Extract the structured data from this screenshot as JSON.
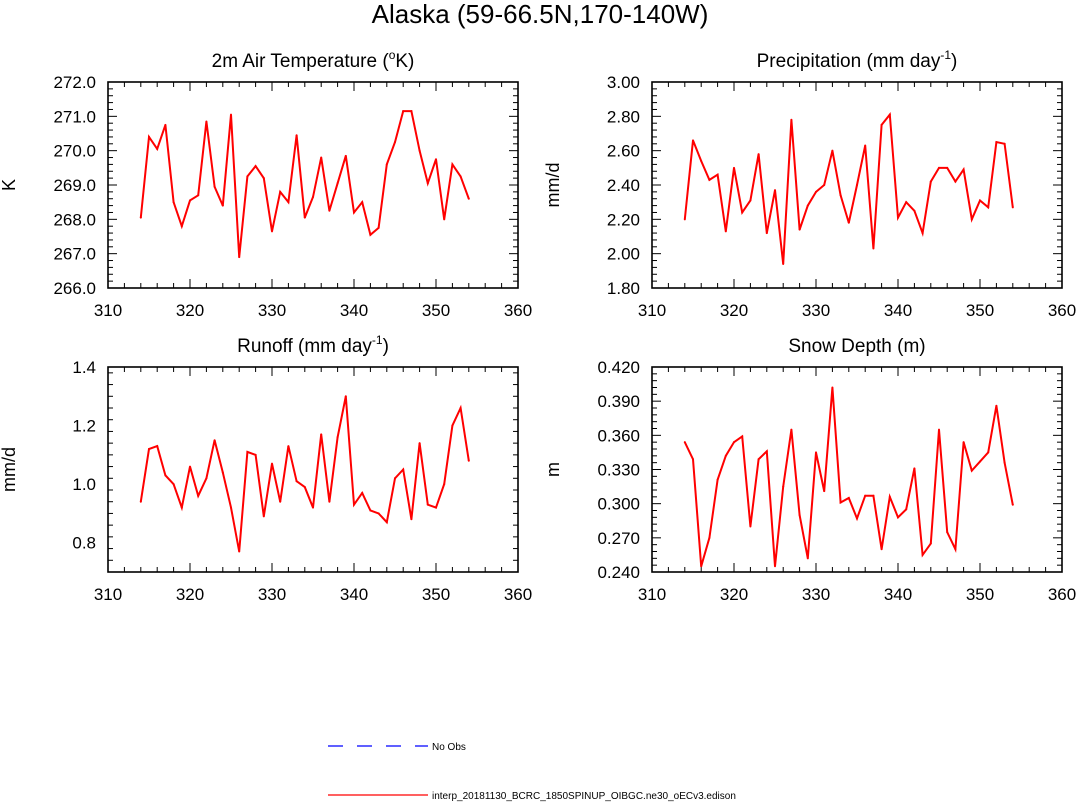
{
  "figure": {
    "title": "Alaska (59-66.5N,170-140W)",
    "line_color": "#ff0000",
    "obs_color": "#0000ff"
  },
  "chart_data": [
    {
      "type": "line",
      "title_main": "2m Air Temperature (",
      "title_sup": "o",
      "title_tail": "K)",
      "ylabel": "K",
      "xlim": [
        310,
        360
      ],
      "ylim": [
        266.0,
        272.0
      ],
      "xticks": [
        "310",
        "320",
        "330",
        "340",
        "350",
        "360"
      ],
      "yticks": [
        "266.0",
        "267.0",
        "268.0",
        "269.0",
        "270.0",
        "271.0",
        "272.0"
      ],
      "x": [
        314,
        315,
        316,
        317,
        318,
        319,
        320,
        321,
        322,
        323,
        324,
        325,
        326,
        327,
        328,
        329,
        330,
        331,
        332,
        333,
        334,
        335,
        336,
        337,
        338,
        339,
        340,
        341,
        342,
        343,
        344,
        345,
        346,
        347,
        348,
        349,
        350,
        351,
        352,
        353,
        354
      ],
      "series": [
        {
          "name": "interp_20181130_BCRC_1850SPINUP_OIBGC.ne30_oECv3.edison",
          "values": [
            268.05,
            270.4,
            270.05,
            270.75,
            268.5,
            267.8,
            268.55,
            268.7,
            270.85,
            268.95,
            268.4,
            271.05,
            266.9,
            269.25,
            269.55,
            269.2,
            267.65,
            268.8,
            268.5,
            270.45,
            268.05,
            268.65,
            269.8,
            268.25,
            269.05,
            269.85,
            268.2,
            268.5,
            267.55,
            267.75,
            269.6,
            270.25,
            271.15,
            271.15,
            270.0,
            269.05,
            269.75,
            268.0,
            269.6,
            269.25,
            268.6
          ]
        }
      ]
    },
    {
      "type": "line",
      "title_main": "Precipitation (mm day",
      "title_sup": "-1",
      "title_tail": ")",
      "ylabel": "mm/d",
      "xlim": [
        310,
        360
      ],
      "ylim": [
        1.8,
        3.0
      ],
      "xticks": [
        "310",
        "320",
        "330",
        "340",
        "350",
        "360"
      ],
      "yticks": [
        "1.80",
        "2.00",
        "2.20",
        "2.40",
        "2.60",
        "2.80",
        "3.00"
      ],
      "x": [
        314,
        315,
        316,
        317,
        318,
        319,
        320,
        321,
        322,
        323,
        324,
        325,
        326,
        327,
        328,
        329,
        330,
        331,
        332,
        333,
        334,
        335,
        336,
        337,
        338,
        339,
        340,
        341,
        342,
        343,
        344,
        345,
        346,
        347,
        348,
        349,
        350,
        351,
        352,
        353,
        354
      ],
      "series": [
        {
          "name": "interp_20181130_BCRC_1850SPINUP_OIBGC.ne30_oECv3.edison",
          "values": [
            2.2,
            2.66,
            2.54,
            2.43,
            2.46,
            2.13,
            2.5,
            2.24,
            2.31,
            2.58,
            2.12,
            2.37,
            1.94,
            2.78,
            2.14,
            2.28,
            2.36,
            2.4,
            2.6,
            2.34,
            2.18,
            2.4,
            2.63,
            2.03,
            2.75,
            2.81,
            2.21,
            2.3,
            2.25,
            2.12,
            2.42,
            2.5,
            2.5,
            2.42,
            2.49,
            2.2,
            2.31,
            2.27,
            2.65,
            2.64,
            2.27
          ]
        }
      ]
    },
    {
      "type": "line",
      "title_main": "Runoff (mm day",
      "title_sup": "-1",
      "title_tail": ")",
      "ylabel": "mm/d",
      "xlim": [
        310,
        360
      ],
      "ylim": [
        0.7,
        1.4
      ],
      "xticks": [
        "310",
        "320",
        "330",
        "340",
        "350",
        "360"
      ],
      "yticks": [
        "0.8",
        "1.0",
        "1.2",
        "1.4"
      ],
      "ytick_values": [
        0.8,
        1.0,
        1.2,
        1.4
      ],
      "x": [
        314,
        315,
        316,
        317,
        318,
        319,
        320,
        321,
        322,
        323,
        324,
        325,
        326,
        327,
        328,
        329,
        330,
        331,
        332,
        333,
        334,
        335,
        336,
        337,
        338,
        339,
        340,
        341,
        342,
        343,
        344,
        345,
        346,
        347,
        348,
        349,
        350,
        351,
        352,
        353,
        354
      ],
      "series": [
        {
          "name": "interp_20181130_BCRC_1850SPINUP_OIBGC.ne30_oECv3.edison",
          "values": [
            0.94,
            1.12,
            1.13,
            1.03,
            1.0,
            0.92,
            1.06,
            0.96,
            1.02,
            1.15,
            1.04,
            0.92,
            0.77,
            1.11,
            1.1,
            0.89,
            1.07,
            0.94,
            1.13,
            1.01,
            0.99,
            0.92,
            1.17,
            0.94,
            1.16,
            1.3,
            0.93,
            0.97,
            0.91,
            0.9,
            0.87,
            1.02,
            1.05,
            0.88,
            1.14,
            0.93,
            0.92,
            1.0,
            1.2,
            1.26,
            1.08
          ]
        }
      ]
    },
    {
      "type": "line",
      "title_main": "Snow Depth (m)",
      "title_sup": "",
      "title_tail": "",
      "ylabel": "m",
      "xlim": [
        310,
        360
      ],
      "ylim": [
        0.24,
        0.42
      ],
      "xticks": [
        "310",
        "320",
        "330",
        "340",
        "350",
        "360"
      ],
      "yticks": [
        "0.240",
        "0.270",
        "0.300",
        "0.330",
        "0.360",
        "0.390",
        "0.420"
      ],
      "x": [
        314,
        315,
        316,
        317,
        318,
        319,
        320,
        321,
        322,
        323,
        324,
        325,
        326,
        327,
        328,
        329,
        330,
        331,
        332,
        333,
        334,
        335,
        336,
        337,
        338,
        339,
        340,
        341,
        342,
        343,
        344,
        345,
        346,
        347,
        348,
        349,
        350,
        351,
        352,
        353,
        354
      ],
      "series": [
        {
          "name": "interp_20181130_BCRC_1850SPINUP_OIBGC.ne30_oECv3.edison",
          "values": [
            0.354,
            0.339,
            0.245,
            0.27,
            0.321,
            0.342,
            0.354,
            0.359,
            0.28,
            0.339,
            0.346,
            0.245,
            0.315,
            0.365,
            0.29,
            0.252,
            0.345,
            0.311,
            0.402,
            0.301,
            0.305,
            0.287,
            0.307,
            0.307,
            0.26,
            0.306,
            0.288,
            0.295,
            0.331,
            0.255,
            0.265,
            0.365,
            0.275,
            0.26,
            0.354,
            0.329,
            0.337,
            0.345,
            0.386,
            0.336,
            0.299
          ]
        }
      ]
    }
  ],
  "legend": [
    {
      "label": "No Obs",
      "style": "dashed",
      "color": "#0000ff"
    },
    {
      "label": "interp_20181130_BCRC_1850SPINUP_OIBGC.ne30_oECv3.edison",
      "style": "solid",
      "color": "#ff0000"
    }
  ]
}
